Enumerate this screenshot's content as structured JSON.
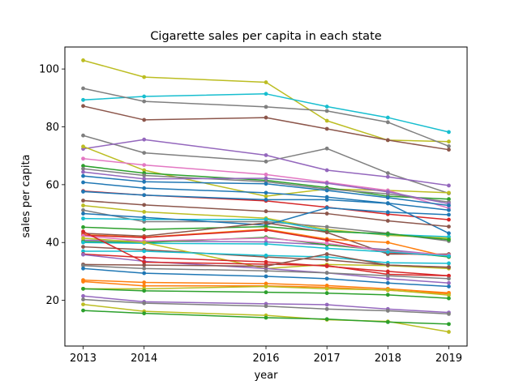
{
  "chart_data": {
    "type": "line",
    "title": "Cigarette sales per capita in each state",
    "xlabel": "year",
    "ylabel": "sales per capita",
    "xlim": [
      2012.7,
      2019.3
    ],
    "ylim": [
      4.2,
      107.6
    ],
    "x_ticks": [
      2013,
      2014,
      2016,
      2017,
      2018,
      2019
    ],
    "y_ticks": [
      20,
      40,
      60,
      80,
      100
    ],
    "grid": false,
    "legend": "none",
    "x": [
      2013,
      2014,
      2016,
      2017,
      2018,
      2019
    ],
    "series": [
      {
        "color": "#bcbd22",
        "values": [
          103.0,
          97.2,
          95.4,
          82.1,
          75.4,
          74.9
        ]
      },
      {
        "color": "#17becf",
        "values": [
          89.3,
          90.5,
          91.4,
          87.0,
          83.2,
          78.2
        ]
      },
      {
        "color": "#7f7f7f",
        "values": [
          93.3,
          88.8,
          86.9,
          85.5,
          81.6,
          73.3
        ]
      },
      {
        "color": "#8c564b",
        "values": [
          87.2,
          82.4,
          83.2,
          79.3,
          75.4,
          72.1
        ]
      },
      {
        "color": "#7f7f7f",
        "values": [
          77.0,
          71.0,
          68.0,
          72.5,
          64.0,
          57.0
        ]
      },
      {
        "color": "#9467bd",
        "values": [
          72.4,
          75.6,
          70.2,
          65.0,
          62.7,
          59.7
        ]
      },
      {
        "color": "#bcbd22",
        "values": [
          73.2,
          65.0,
          56.0,
          58.5,
          58.0,
          57.2
        ]
      },
      {
        "color": "#e377c2",
        "values": [
          69.0,
          66.8,
          63.5,
          60.8,
          58.0,
          51.9
        ]
      },
      {
        "color": "#2ca02c",
        "values": [
          66.5,
          64.0,
          61.5,
          59.0,
          56.0,
          55.0
        ]
      },
      {
        "color": "#7f7f7f",
        "values": [
          65.5,
          63.2,
          61.0,
          58.5,
          56.8,
          54.0
        ]
      },
      {
        "color": "#9467bd",
        "values": [
          64.4,
          62.0,
          62.2,
          60.5,
          57.5,
          53.4
        ]
      },
      {
        "color": "#1f77b4",
        "values": [
          63.0,
          61.0,
          60.3,
          58.0,
          55.5,
          52.8
        ]
      },
      {
        "color": "#1f77b4",
        "values": [
          60.8,
          58.8,
          57.2,
          55.7,
          53.6,
          51.2
        ]
      },
      {
        "color": "#d62728",
        "values": [
          57.8,
          56.4,
          54.4,
          52.2,
          49.8,
          47.9
        ]
      },
      {
        "color": "#1f77b4",
        "values": [
          57.6,
          56.4,
          54.8,
          54.8,
          53.5,
          43.2
        ]
      },
      {
        "color": "#8c564b",
        "values": [
          54.5,
          53.0,
          50.8,
          50.0,
          47.5,
          45.5
        ]
      },
      {
        "color": "#bcbd22",
        "values": [
          52.8,
          50.6,
          48.4,
          44.5,
          42.5,
          41.5
        ]
      },
      {
        "color": "#7f7f7f",
        "values": [
          51.2,
          47.2,
          47.2,
          45.4,
          43.2,
          40.5
        ]
      },
      {
        "color": "#17becf",
        "values": [
          48.3,
          48.0,
          48.0,
          44.0,
          42.8,
          42.0
        ]
      },
      {
        "color": "#1f77b4",
        "values": [
          50.0,
          48.7,
          46.0,
          52.0,
          50.5,
          49.6
        ]
      },
      {
        "color": "#2ca02c",
        "values": [
          45.3,
          44.5,
          45.5,
          43.8,
          43.0,
          41.0
        ]
      },
      {
        "color": "#8c564b",
        "values": [
          43.2,
          42.2,
          46.8,
          43.5,
          36.0,
          36.0
        ]
      },
      {
        "color": "#ff7f0e",
        "values": [
          42.7,
          41.8,
          44.6,
          41.2,
          40.0,
          35.0
        ]
      },
      {
        "color": "#d62728",
        "values": [
          42.5,
          41.7,
          44.3,
          40.8,
          36.5,
          35.3
        ]
      },
      {
        "color": "#9467bd",
        "values": [
          40.8,
          40.5,
          40.2,
          39.2,
          37.5,
          35.5
        ]
      },
      {
        "color": "#2ca02c",
        "values": [
          40.3,
          40.0,
          41.8,
          39.2,
          37.2,
          35.0
        ]
      },
      {
        "color": "#e377c2",
        "values": [
          42.3,
          40.5,
          41.5,
          39.7,
          37.0,
          35.6
        ]
      },
      {
        "color": "#17becf",
        "values": [
          40.0,
          39.7,
          39.5,
          38.0,
          36.7,
          35.3
        ]
      },
      {
        "color": "#8c564b",
        "values": [
          38.5,
          37.5,
          35.0,
          34.0,
          32.2,
          31.5
        ]
      },
      {
        "color": "#bcbd22",
        "values": [
          41.5,
          40.0,
          31.0,
          32.4,
          32.0,
          31.0
        ]
      },
      {
        "color": "#17becf",
        "values": [
          37.0,
          37.0,
          35.5,
          35.0,
          33.0,
          32.8
        ]
      },
      {
        "color": "#d62728",
        "values": [
          36.0,
          34.8,
          33.3,
          31.8,
          30.0,
          28.5
        ]
      },
      {
        "color": "#9467bd",
        "values": [
          35.8,
          33.5,
          31.0,
          29.5,
          27.5,
          26.0
        ]
      },
      {
        "color": "#d62728",
        "values": [
          43.8,
          33.2,
          32.5,
          32.0,
          29.0,
          28.5
        ]
      },
      {
        "color": "#8c564b",
        "values": [
          32.4,
          32.2,
          31.8,
          36.0,
          32.2,
          31.4
        ]
      },
      {
        "color": "#7f7f7f",
        "values": [
          32.0,
          31.0,
          30.2,
          29.5,
          28.5,
          27.5
        ]
      },
      {
        "color": "#1f77b4",
        "values": [
          31.0,
          29.4,
          28.3,
          27.5,
          26.0,
          24.8
        ]
      },
      {
        "color": "#ff7f0e",
        "values": [
          27.0,
          26.2,
          25.8,
          25.1,
          24.0,
          22.6
        ]
      },
      {
        "color": "#ff7f0e",
        "values": [
          26.5,
          25.0,
          25.0,
          24.5,
          23.5,
          22.3
        ]
      },
      {
        "color": "#bcbd22",
        "values": [
          24.0,
          24.0,
          24.8,
          24.0,
          23.6,
          21.8
        ]
      },
      {
        "color": "#2ca02c",
        "values": [
          24.0,
          23.3,
          22.8,
          22.5,
          21.9,
          20.7
        ]
      },
      {
        "color": "#9467bd",
        "values": [
          21.5,
          19.5,
          18.8,
          18.5,
          17.0,
          15.8
        ]
      },
      {
        "color": "#7f7f7f",
        "values": [
          20.3,
          19.0,
          18.0,
          17.0,
          16.4,
          15.3
        ]
      },
      {
        "color": "#bcbd22",
        "values": [
          18.6,
          16.2,
          14.8,
          13.3,
          12.7,
          9.1
        ]
      },
      {
        "color": "#2ca02c",
        "values": [
          16.5,
          15.5,
          14.0,
          13.5,
          12.5,
          11.8
        ]
      }
    ]
  }
}
